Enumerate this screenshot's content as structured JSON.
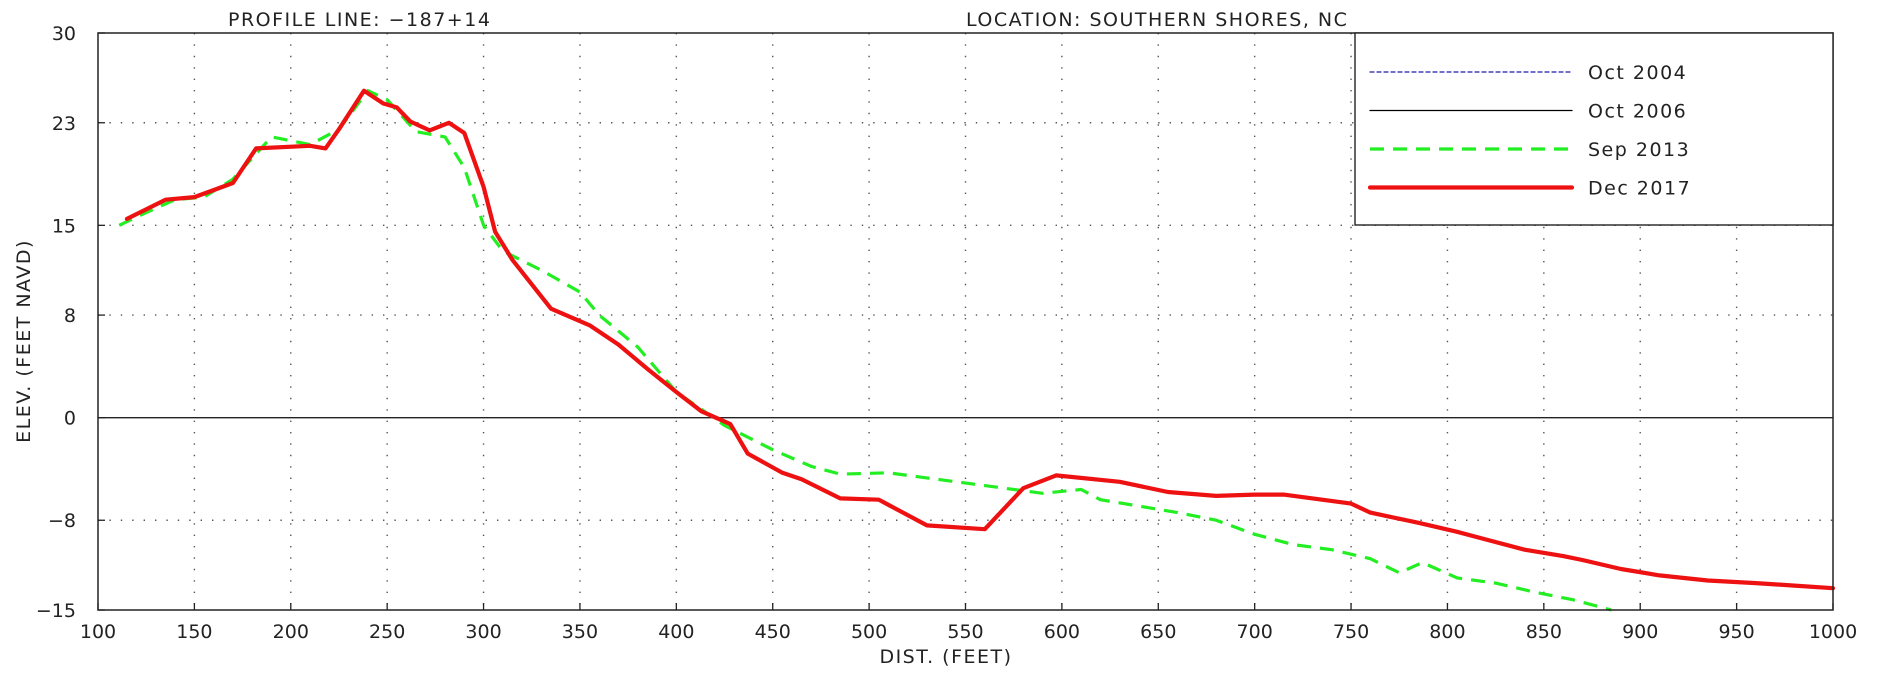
{
  "header": {
    "profile_line": "PROFILE LINE: −187+14",
    "location": "LOCATION: SOUTHERN SHORES, NC"
  },
  "chart_data": {
    "type": "line",
    "title": "",
    "xlabel": "DIST. (FEET)",
    "ylabel": "ELEV. (FEET NAVD)",
    "xlim": [
      100,
      1000
    ],
    "ylim": [
      -15,
      30
    ],
    "x_ticks": [
      100,
      150,
      200,
      250,
      300,
      350,
      400,
      450,
      500,
      550,
      600,
      650,
      700,
      750,
      800,
      850,
      900,
      950,
      1000
    ],
    "y_ticks": [
      -15,
      -8,
      0,
      8,
      15,
      23,
      30
    ],
    "y_tick_labels": [
      "−15",
      "−8",
      "0",
      "8",
      "15",
      "23",
      "30"
    ],
    "grid": true,
    "legend_position": "top-right",
    "series": [
      {
        "name": "Oct 2004",
        "color": "#1a1aa8",
        "style": "dotted",
        "points": []
      },
      {
        "name": "Oct 2006",
        "color": "#000000",
        "style": "solid-thin",
        "points": []
      },
      {
        "name": "Sep 2013",
        "color": "#22ee22",
        "style": "dashed",
        "points": [
          [
            111,
            15.0
          ],
          [
            125,
            16.0
          ],
          [
            140,
            17.0
          ],
          [
            155,
            17.2
          ],
          [
            170,
            18.6
          ],
          [
            190,
            21.9
          ],
          [
            210,
            21.3
          ],
          [
            225,
            22.5
          ],
          [
            240,
            25.5
          ],
          [
            250,
            24.8
          ],
          [
            265,
            22.3
          ],
          [
            280,
            21.9
          ],
          [
            290,
            19.5
          ],
          [
            300,
            15.0
          ],
          [
            310,
            13.0
          ],
          [
            330,
            11.5
          ],
          [
            350,
            9.8
          ],
          [
            360,
            8.0
          ],
          [
            380,
            5.5
          ],
          [
            400,
            2.0
          ],
          [
            425,
            -0.6
          ],
          [
            450,
            -2.5
          ],
          [
            470,
            -3.8
          ],
          [
            485,
            -4.4
          ],
          [
            510,
            -4.3
          ],
          [
            530,
            -4.7
          ],
          [
            560,
            -5.3
          ],
          [
            590,
            -5.9
          ],
          [
            610,
            -5.6
          ],
          [
            620,
            -6.4
          ],
          [
            640,
            -6.9
          ],
          [
            660,
            -7.4
          ],
          [
            680,
            -8.0
          ],
          [
            700,
            -9.1
          ],
          [
            720,
            -9.9
          ],
          [
            740,
            -10.3
          ],
          [
            760,
            -11.0
          ],
          [
            775,
            -12.1
          ],
          [
            787,
            -11.3
          ],
          [
            805,
            -12.5
          ],
          [
            825,
            -12.9
          ],
          [
            845,
            -13.6
          ],
          [
            865,
            -14.2
          ],
          [
            885,
            -15.0
          ]
        ]
      },
      {
        "name": "Dec 2017",
        "color": "#ee1111",
        "style": "solid-thick",
        "points": [
          [
            115,
            15.5
          ],
          [
            135,
            17.0
          ],
          [
            150,
            17.2
          ],
          [
            170,
            18.3
          ],
          [
            182,
            21.0
          ],
          [
            210,
            21.2
          ],
          [
            218,
            21.0
          ],
          [
            225,
            22.5
          ],
          [
            238,
            25.5
          ],
          [
            248,
            24.5
          ],
          [
            255,
            24.2
          ],
          [
            262,
            23.1
          ],
          [
            272,
            22.4
          ],
          [
            282,
            23.0
          ],
          [
            290,
            22.2
          ],
          [
            300,
            18.0
          ],
          [
            306,
            14.5
          ],
          [
            315,
            12.3
          ],
          [
            335,
            8.5
          ],
          [
            355,
            7.2
          ],
          [
            370,
            5.7
          ],
          [
            385,
            3.8
          ],
          [
            400,
            2.0
          ],
          [
            413,
            0.5
          ],
          [
            428,
            -0.5
          ],
          [
            437,
            -2.8
          ],
          [
            455,
            -4.3
          ],
          [
            465,
            -4.8
          ],
          [
            485,
            -6.3
          ],
          [
            505,
            -6.4
          ],
          [
            530,
            -8.4
          ],
          [
            560,
            -8.7
          ],
          [
            580,
            -5.5
          ],
          [
            597,
            -4.5
          ],
          [
            630,
            -5.0
          ],
          [
            655,
            -5.8
          ],
          [
            680,
            -6.1
          ],
          [
            700,
            -6.0
          ],
          [
            715,
            -6.0
          ],
          [
            750,
            -6.7
          ],
          [
            760,
            -7.4
          ],
          [
            785,
            -8.2
          ],
          [
            805,
            -8.9
          ],
          [
            820,
            -9.5
          ],
          [
            840,
            -10.3
          ],
          [
            860,
            -10.8
          ],
          [
            870,
            -11.1
          ],
          [
            890,
            -11.8
          ],
          [
            910,
            -12.3
          ],
          [
            935,
            -12.7
          ],
          [
            960,
            -12.9
          ],
          [
            980,
            -13.1
          ],
          [
            1000,
            -13.3
          ]
        ]
      }
    ]
  }
}
